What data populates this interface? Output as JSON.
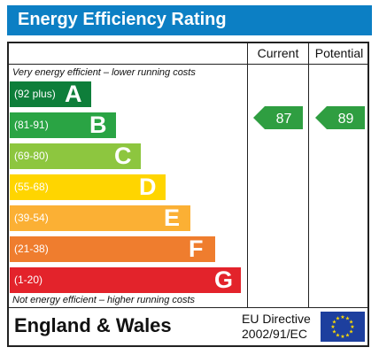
{
  "title": "Energy Efficiency Rating",
  "columns": {
    "current": "Current",
    "potential": "Potential"
  },
  "notes": {
    "top": "Very energy efficient – lower running costs",
    "bottom": "Not energy efficient – higher running costs"
  },
  "footer": {
    "region": "England & Wales",
    "directive_line1": "EU Directive",
    "directive_line2": "2002/91/EC"
  },
  "colors": {
    "title_bar": "#0c7fc4",
    "rating_arrow": "#2f9e41"
  },
  "chart_data": {
    "type": "table",
    "bands": [
      {
        "letter": "A",
        "range": "(92 plus)",
        "color": "#0e7e3a"
      },
      {
        "letter": "B",
        "range": "(81-91)",
        "color": "#2aa444"
      },
      {
        "letter": "C",
        "range": "(69-80)",
        "color": "#8dc63f"
      },
      {
        "letter": "D",
        "range": "(55-68)",
        "color": "#ffd500"
      },
      {
        "letter": "E",
        "range": "(39-54)",
        "color": "#fbb034"
      },
      {
        "letter": "F",
        "range": "(21-38)",
        "color": "#ef7d2e"
      },
      {
        "letter": "G",
        "range": "(1-20)",
        "color": "#e3232b"
      }
    ],
    "current": {
      "value": "87",
      "band": "B"
    },
    "potential": {
      "value": "89",
      "band": "B"
    }
  }
}
